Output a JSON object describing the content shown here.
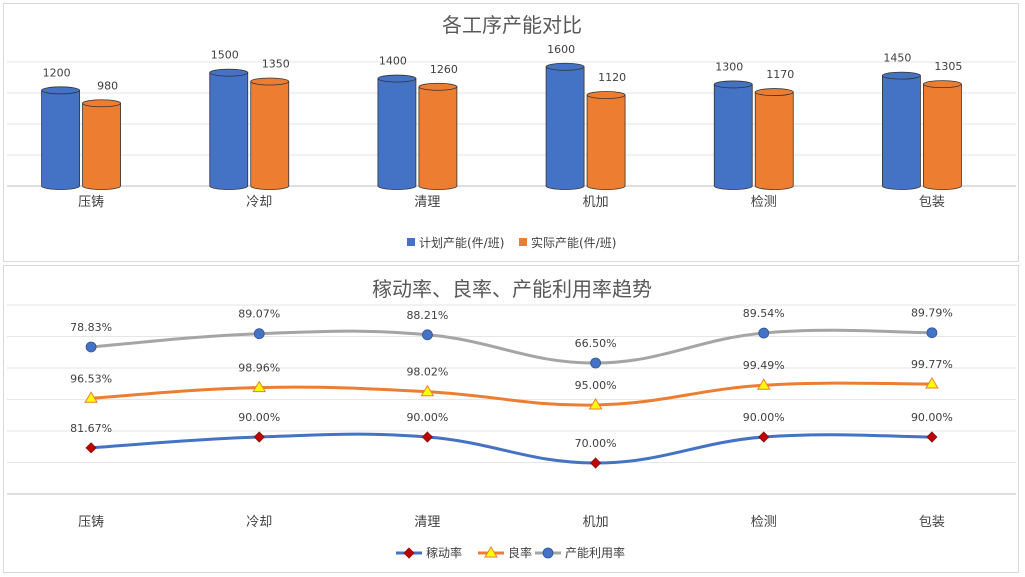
{
  "chart_data": [
    {
      "type": "bar",
      "title": "各工序产能对比",
      "categories": [
        "压铸",
        "冷却",
        "清理",
        "机加",
        "检测",
        "包装"
      ],
      "series": [
        {
          "name": "计划产能(件/班)",
          "values": [
            1200,
            1500,
            1400,
            1600,
            1300,
            1450
          ],
          "color": "#4472c4"
        },
        {
          "name": "实际产能(件/班)",
          "values": [
            980,
            1350,
            1260,
            1120,
            1170,
            1305
          ],
          "color": "#ed7d31"
        }
      ],
      "ylim": [
        0,
        1600
      ],
      "legend": "bottom",
      "grid": true
    },
    {
      "type": "line",
      "title": "稼动率、良率、产能利用率趋势",
      "categories": [
        "压铸",
        "冷却",
        "清理",
        "机加",
        "检测",
        "包装"
      ],
      "series": [
        {
          "name": "稼动率",
          "values": [
            81.67,
            90.0,
            90.0,
            70.0,
            90.0,
            90.0
          ],
          "labels": [
            "81.67%",
            "90.00%",
            "90.00%",
            "70.00%",
            "90.00%",
            "90.00%"
          ],
          "color": "#4472c4",
          "marker": "diamond",
          "marker_color": "#c00000"
        },
        {
          "name": "良率",
          "values": [
            96.53,
            98.96,
            98.02,
            95.0,
            99.49,
            99.77
          ],
          "labels": [
            "96.53%",
            "98.96%",
            "98.02%",
            "95.00%",
            "99.49%",
            "99.77%"
          ],
          "color": "#ed7d31",
          "marker": "triangle",
          "marker_color": "#ffff00"
        },
        {
          "name": "产能利用率",
          "values": [
            78.83,
            89.07,
            88.21,
            66.5,
            89.54,
            89.79
          ],
          "labels": [
            "78.83%",
            "89.07%",
            "88.21%",
            "66.50%",
            "89.54%",
            "89.79%"
          ],
          "color": "#a5a5a5",
          "marker": "circle",
          "marker_color": "#4472c4"
        }
      ],
      "legend": "bottom",
      "grid": true
    }
  ]
}
